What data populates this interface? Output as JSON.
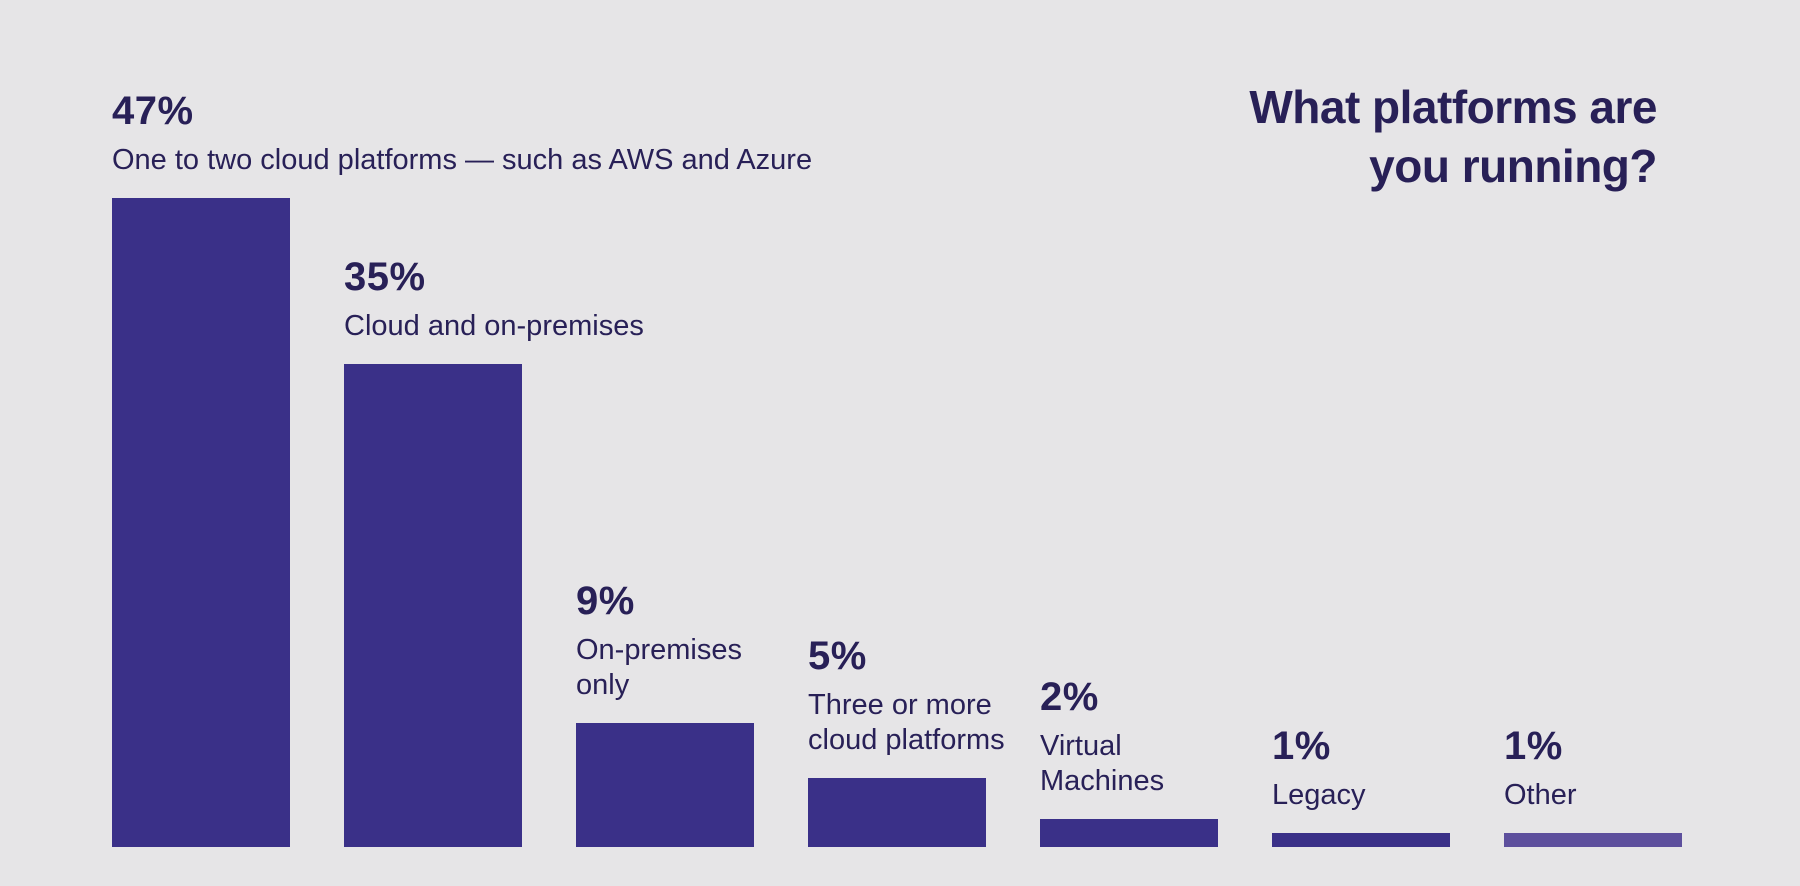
{
  "title": {
    "line1": "What platforms are",
    "line2": "you running?"
  },
  "colors": {
    "background": "#e6e5e7",
    "bar": "#3a3088",
    "bar_other": "#5d4f9d",
    "text": "#282057"
  },
  "chart_data": {
    "type": "bar",
    "title": "What platforms are you running?",
    "xlabel": "",
    "ylabel": "",
    "ylim": [
      0,
      50
    ],
    "grid": false,
    "legend": false,
    "value_label_format": "percent",
    "categories": [
      "One to two cloud platforms — such as AWS and Azure",
      "Cloud and on-premises",
      "On-premises only",
      "Three or more cloud platforms",
      "Virtual Machines",
      "Legacy",
      "Other"
    ],
    "values": [
      47,
      35,
      9,
      5,
      2,
      1,
      1
    ],
    "bars": [
      {
        "pct": "47%",
        "value": 47,
        "lines": [
          "One to two cloud platforms — such as AWS and Azure"
        ],
        "variant": "normal"
      },
      {
        "pct": "35%",
        "value": 35,
        "lines": [
          "Cloud and on-premises"
        ],
        "variant": "normal"
      },
      {
        "pct": "9%",
        "value": 9,
        "lines": [
          "On-premises",
          "only"
        ],
        "variant": "normal"
      },
      {
        "pct": "5%",
        "value": 5,
        "lines": [
          "Three or more",
          "cloud platforms"
        ],
        "variant": "normal"
      },
      {
        "pct": "2%",
        "value": 2,
        "lines": [
          "Virtual",
          "Machines"
        ],
        "variant": "normal"
      },
      {
        "pct": "1%",
        "value": 1,
        "lines": [
          "Legacy"
        ],
        "variant": "normal"
      },
      {
        "pct": "1%",
        "value": 1,
        "lines": [
          "Other"
        ],
        "variant": "light"
      }
    ]
  }
}
